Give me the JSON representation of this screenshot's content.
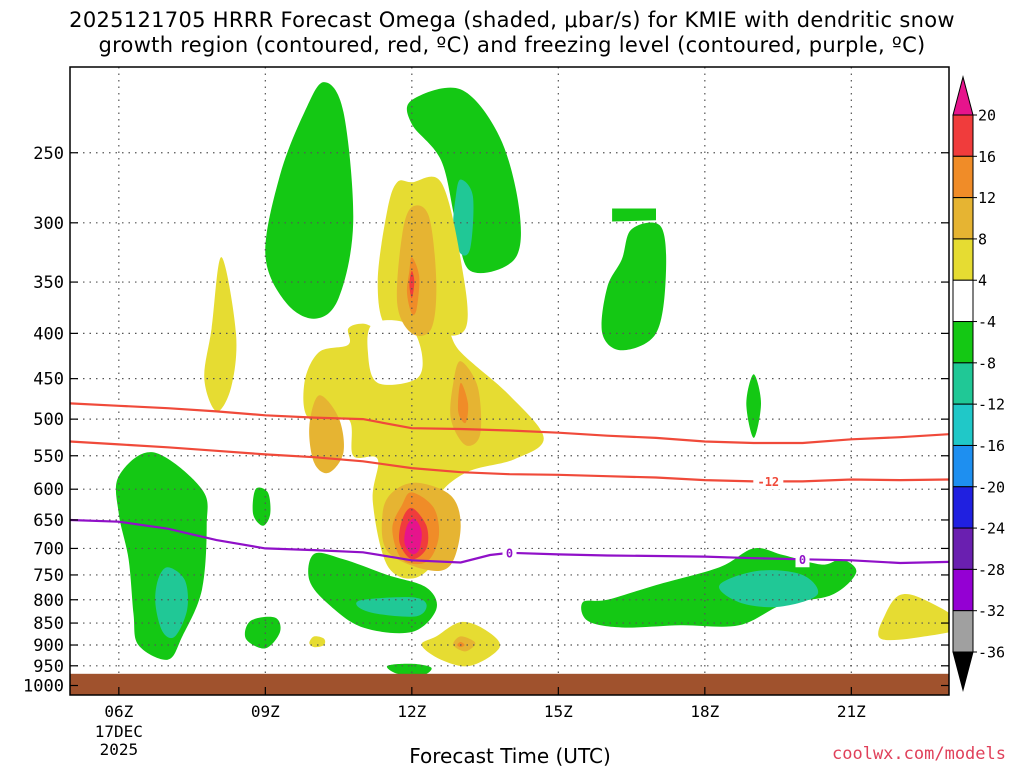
{
  "chart_data": {
    "type": "contour",
    "title_line1": "2025121705 HRRR Forecast Omega (shaded, μbar/s) for KMIE with dendritic snow",
    "title_line2": "growth region (contoured, red, ºC) and freezing level (contoured, purple, ºC)",
    "xlabel": "Forecast Time (UTC)",
    "credit": "coolwx.com/models",
    "x_ticks": [
      {
        "hour": 6,
        "label": "06Z",
        "sub1": "17DEC",
        "sub2": "2025"
      },
      {
        "hour": 9,
        "label": "09Z"
      },
      {
        "hour": 12,
        "label": "12Z"
      },
      {
        "hour": 15,
        "label": "15Z"
      },
      {
        "hour": 18,
        "label": "18Z"
      },
      {
        "hour": 21,
        "label": "21Z"
      }
    ],
    "xlim": [
      5,
      23
    ],
    "y_ticks": [
      250,
      300,
      350,
      400,
      450,
      500,
      550,
      600,
      650,
      700,
      750,
      800,
      850,
      900,
      950,
      1000
    ],
    "ylim": [
      1025,
      200
    ],
    "y_scale": "log-pressure",
    "grid": true,
    "ground_level_hpa": 970,
    "ground_color": "#a0522d",
    "colorbar": {
      "levels": [
        -36,
        -32,
        -28,
        -24,
        -20,
        -16,
        -12,
        -8,
        -4,
        4,
        8,
        12,
        16,
        20
      ],
      "labels": [
        "20",
        "16",
        "12",
        "8",
        "4",
        "-4",
        "-8",
        "-12",
        "-16",
        "-20",
        "-24",
        "-28",
        "-32",
        "-36"
      ],
      "colors_low_to_high": [
        "#000000",
        "#a0a0a0",
        "#9400d3",
        "#6a1fb0",
        "#2020e0",
        "#1e8ff0",
        "#20c8c8",
        "#20c896",
        "#14c814",
        "#ffffff",
        "#e6dc32",
        "#e6b432",
        "#f08c28",
        "#f03c3c",
        "#e6148c"
      ]
    },
    "shading_colors": {
      "green": "#14c814",
      "teal": "#20c896",
      "yellow": "#e6dc32",
      "gold": "#e6b432",
      "orange": "#f08c28",
      "red": "#f03c3c",
      "magenta": "#e6148c"
    },
    "contours": [
      {
        "name": "dgz-warm-edge",
        "color": "#f04a3a",
        "points": [
          [
            5,
            480
          ],
          [
            6,
            483
          ],
          [
            7,
            486
          ],
          [
            8,
            490
          ],
          [
            9,
            495
          ],
          [
            10,
            498
          ],
          [
            11,
            500
          ],
          [
            12,
            512
          ],
          [
            13,
            513
          ],
          [
            14,
            515
          ],
          [
            15,
            518
          ],
          [
            16,
            522
          ],
          [
            17,
            525
          ],
          [
            18,
            530
          ],
          [
            19,
            532
          ],
          [
            20,
            532
          ],
          [
            21,
            527
          ],
          [
            22,
            524
          ],
          [
            23,
            520
          ]
        ]
      },
      {
        "name": "dgz-cold-edge",
        "color": "#f04a3a",
        "label": "-12",
        "label_hour": 19.3,
        "points": [
          [
            5,
            530
          ],
          [
            6,
            534
          ],
          [
            7,
            538
          ],
          [
            8,
            543
          ],
          [
            9,
            548
          ],
          [
            10,
            552
          ],
          [
            11,
            558
          ],
          [
            12,
            568
          ],
          [
            13,
            574
          ],
          [
            14,
            577
          ],
          [
            15,
            578
          ],
          [
            16,
            580
          ],
          [
            17,
            582
          ],
          [
            18,
            586
          ],
          [
            19,
            588
          ],
          [
            20,
            588
          ],
          [
            21,
            585
          ],
          [
            22,
            586
          ],
          [
            23,
            585
          ]
        ]
      },
      {
        "name": "freezing-level",
        "color": "#9010c8",
        "label": "0",
        "label_hour": 14,
        "label2_hour": 20,
        "points": [
          [
            5,
            650
          ],
          [
            6,
            653
          ],
          [
            7,
            665
          ],
          [
            8,
            685
          ],
          [
            9,
            700
          ],
          [
            10,
            703
          ],
          [
            11,
            707
          ],
          [
            12,
            722
          ],
          [
            13,
            726
          ],
          [
            13.6,
            712
          ],
          [
            14,
            708
          ],
          [
            15,
            711
          ],
          [
            16,
            713
          ],
          [
            17,
            714
          ],
          [
            18,
            715
          ],
          [
            19,
            718
          ],
          [
            20,
            720
          ],
          [
            21,
            722
          ],
          [
            22,
            727
          ],
          [
            23,
            725
          ]
        ]
      }
    ]
  }
}
